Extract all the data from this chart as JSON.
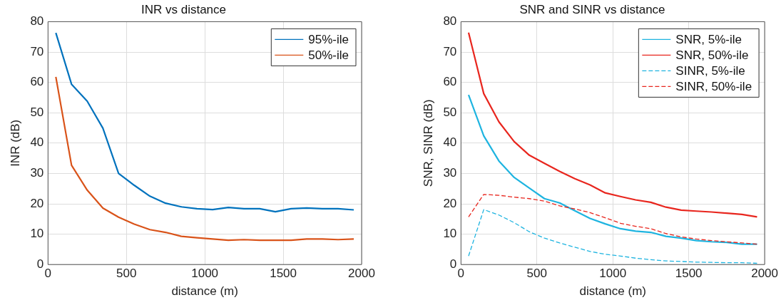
{
  "chart_data": [
    {
      "type": "line",
      "title": "INR vs distance",
      "xlabel": "distance (m)",
      "ylabel": "INR (dB)",
      "x": [
        50,
        150,
        250,
        350,
        450,
        550,
        650,
        750,
        850,
        950,
        1050,
        1150,
        1250,
        1350,
        1450,
        1550,
        1650,
        1750,
        1850,
        1950
      ],
      "series": [
        {
          "name": "95%-ile",
          "color": "#0072bd",
          "values": [
            76.3,
            59.4,
            53.8,
            44.9,
            30,
            26.1,
            22.5,
            20.2,
            19,
            18.4,
            18.1,
            18.8,
            18.4,
            18.4,
            17.4,
            18.4,
            18.6,
            18.4,
            18.4,
            18
          ]
        },
        {
          "name": "50%-ile",
          "color": "#d95319",
          "values": [
            61.8,
            32.7,
            24.5,
            18.6,
            15.6,
            13.3,
            11.5,
            10.6,
            9.3,
            8.8,
            8.4,
            8,
            8.2,
            8,
            8,
            8,
            8.4,
            8.4,
            8.2,
            8.4
          ]
        }
      ],
      "xlim": [
        0,
        2000
      ],
      "xticks": [
        0,
        500,
        1000,
        1500,
        2000
      ],
      "ylim": [
        0,
        80
      ],
      "yticks": [
        0,
        10,
        20,
        30,
        40,
        50,
        60,
        70,
        80
      ],
      "grid": true,
      "legend": "top right",
      "marker": "none"
    },
    {
      "type": "line",
      "title": "SNR and SINR vs distance",
      "xlabel": "distance (m)",
      "ylabel": "SNR, SINR (dB)",
      "x": [
        50,
        150,
        250,
        350,
        450,
        550,
        650,
        750,
        850,
        950,
        1050,
        1150,
        1250,
        1350,
        1450,
        1550,
        1650,
        1750,
        1850,
        1950
      ],
      "series": [
        {
          "name": "SNR, 5%-ile",
          "color": "#1eb4e0",
          "line_style": "solid",
          "values": [
            55.9,
            42.4,
            34.1,
            28.7,
            25.2,
            21.7,
            20.3,
            17.7,
            15.2,
            13.4,
            11.8,
            11,
            10.6,
            9.3,
            8.7,
            7.9,
            7.5,
            7.3,
            6.7,
            6.7
          ]
        },
        {
          "name": "SNR, 50%-ile",
          "color": "#e8261e",
          "line_style": "solid",
          "values": [
            76.4,
            56.3,
            47,
            40.5,
            36,
            33.3,
            30.7,
            28.3,
            26.2,
            23.6,
            22.4,
            21.3,
            20.5,
            18.9,
            17.9,
            17.6,
            17.3,
            16.9,
            16.5,
            15.7
          ]
        },
        {
          "name": "SINR, 5%-ile",
          "color": "#1eb4e0",
          "line_style": "dashed",
          "values": [
            2.8,
            18.1,
            16.3,
            13.8,
            10.8,
            8.7,
            7.1,
            5.7,
            4.3,
            3.4,
            2.8,
            2.1,
            1.6,
            1.2,
            1,
            0.8,
            0.7,
            0.6,
            0.6,
            0.4
          ]
        },
        {
          "name": "SINR, 50%-ile",
          "color": "#e8261e",
          "line_style": "dashed",
          "values": [
            15.7,
            23.1,
            22.8,
            22.2,
            21.7,
            20.9,
            19.3,
            18.3,
            17.1,
            15.4,
            13.6,
            12.6,
            11.8,
            10.2,
            9.1,
            8.4,
            7.9,
            7.5,
            7.1,
            6.7
          ]
        }
      ],
      "xlim": [
        0,
        2000
      ],
      "xticks": [
        0,
        500,
        1000,
        1500,
        2000
      ],
      "ylim": [
        0,
        80
      ],
      "yticks": [
        0,
        10,
        20,
        30,
        40,
        50,
        60,
        70,
        80
      ],
      "grid": true,
      "legend": "top right",
      "marker": "none"
    }
  ]
}
